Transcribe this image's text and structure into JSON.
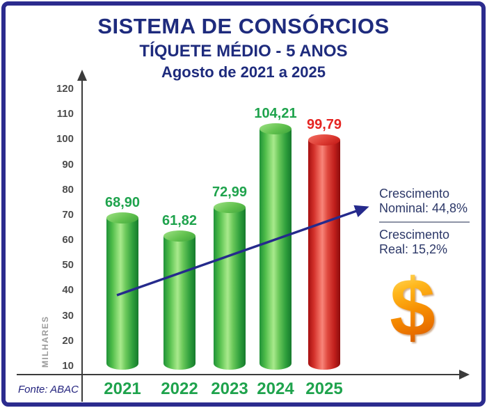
{
  "chart_data": {
    "type": "bar",
    "title": "SISTEMA DE CONSÓRCIOS",
    "subtitle": "TÍQUETE MÉDIO - 5 ANOS",
    "period_label": "Agosto de 2021 a 2025",
    "categories": [
      "2021",
      "2022",
      "2023",
      "2024",
      "2025"
    ],
    "values": [
      68.9,
      61.82,
      72.99,
      104.21,
      99.79
    ],
    "value_labels": [
      "68,90",
      "61,82",
      "72,99",
      "104,21",
      "99,79"
    ],
    "bar_colors": [
      "green",
      "green",
      "green",
      "green",
      "red"
    ],
    "ylabel": "MILHARES",
    "yticks": [
      10,
      20,
      30,
      40,
      50,
      60,
      70,
      80,
      90,
      100,
      110,
      120
    ],
    "ylim": [
      0,
      120
    ],
    "grid": false,
    "legend_position": "none",
    "source": "Fonte: ABAC",
    "annotations": {
      "nominal_label": "Crescimento",
      "nominal_value": "Nominal: 44,8%",
      "real_label": "Crescimento",
      "real_value": "Real: 15,2%"
    }
  },
  "icons": {
    "dollar": "$"
  },
  "colors": {
    "title_navy": "#1e2b7d",
    "green_label": "#1fa34d",
    "red_label": "#e52421",
    "trend_arrow_navy": "#252a8c",
    "gold": "#f5a300",
    "frame_border_navy": "#2b2b8e"
  }
}
